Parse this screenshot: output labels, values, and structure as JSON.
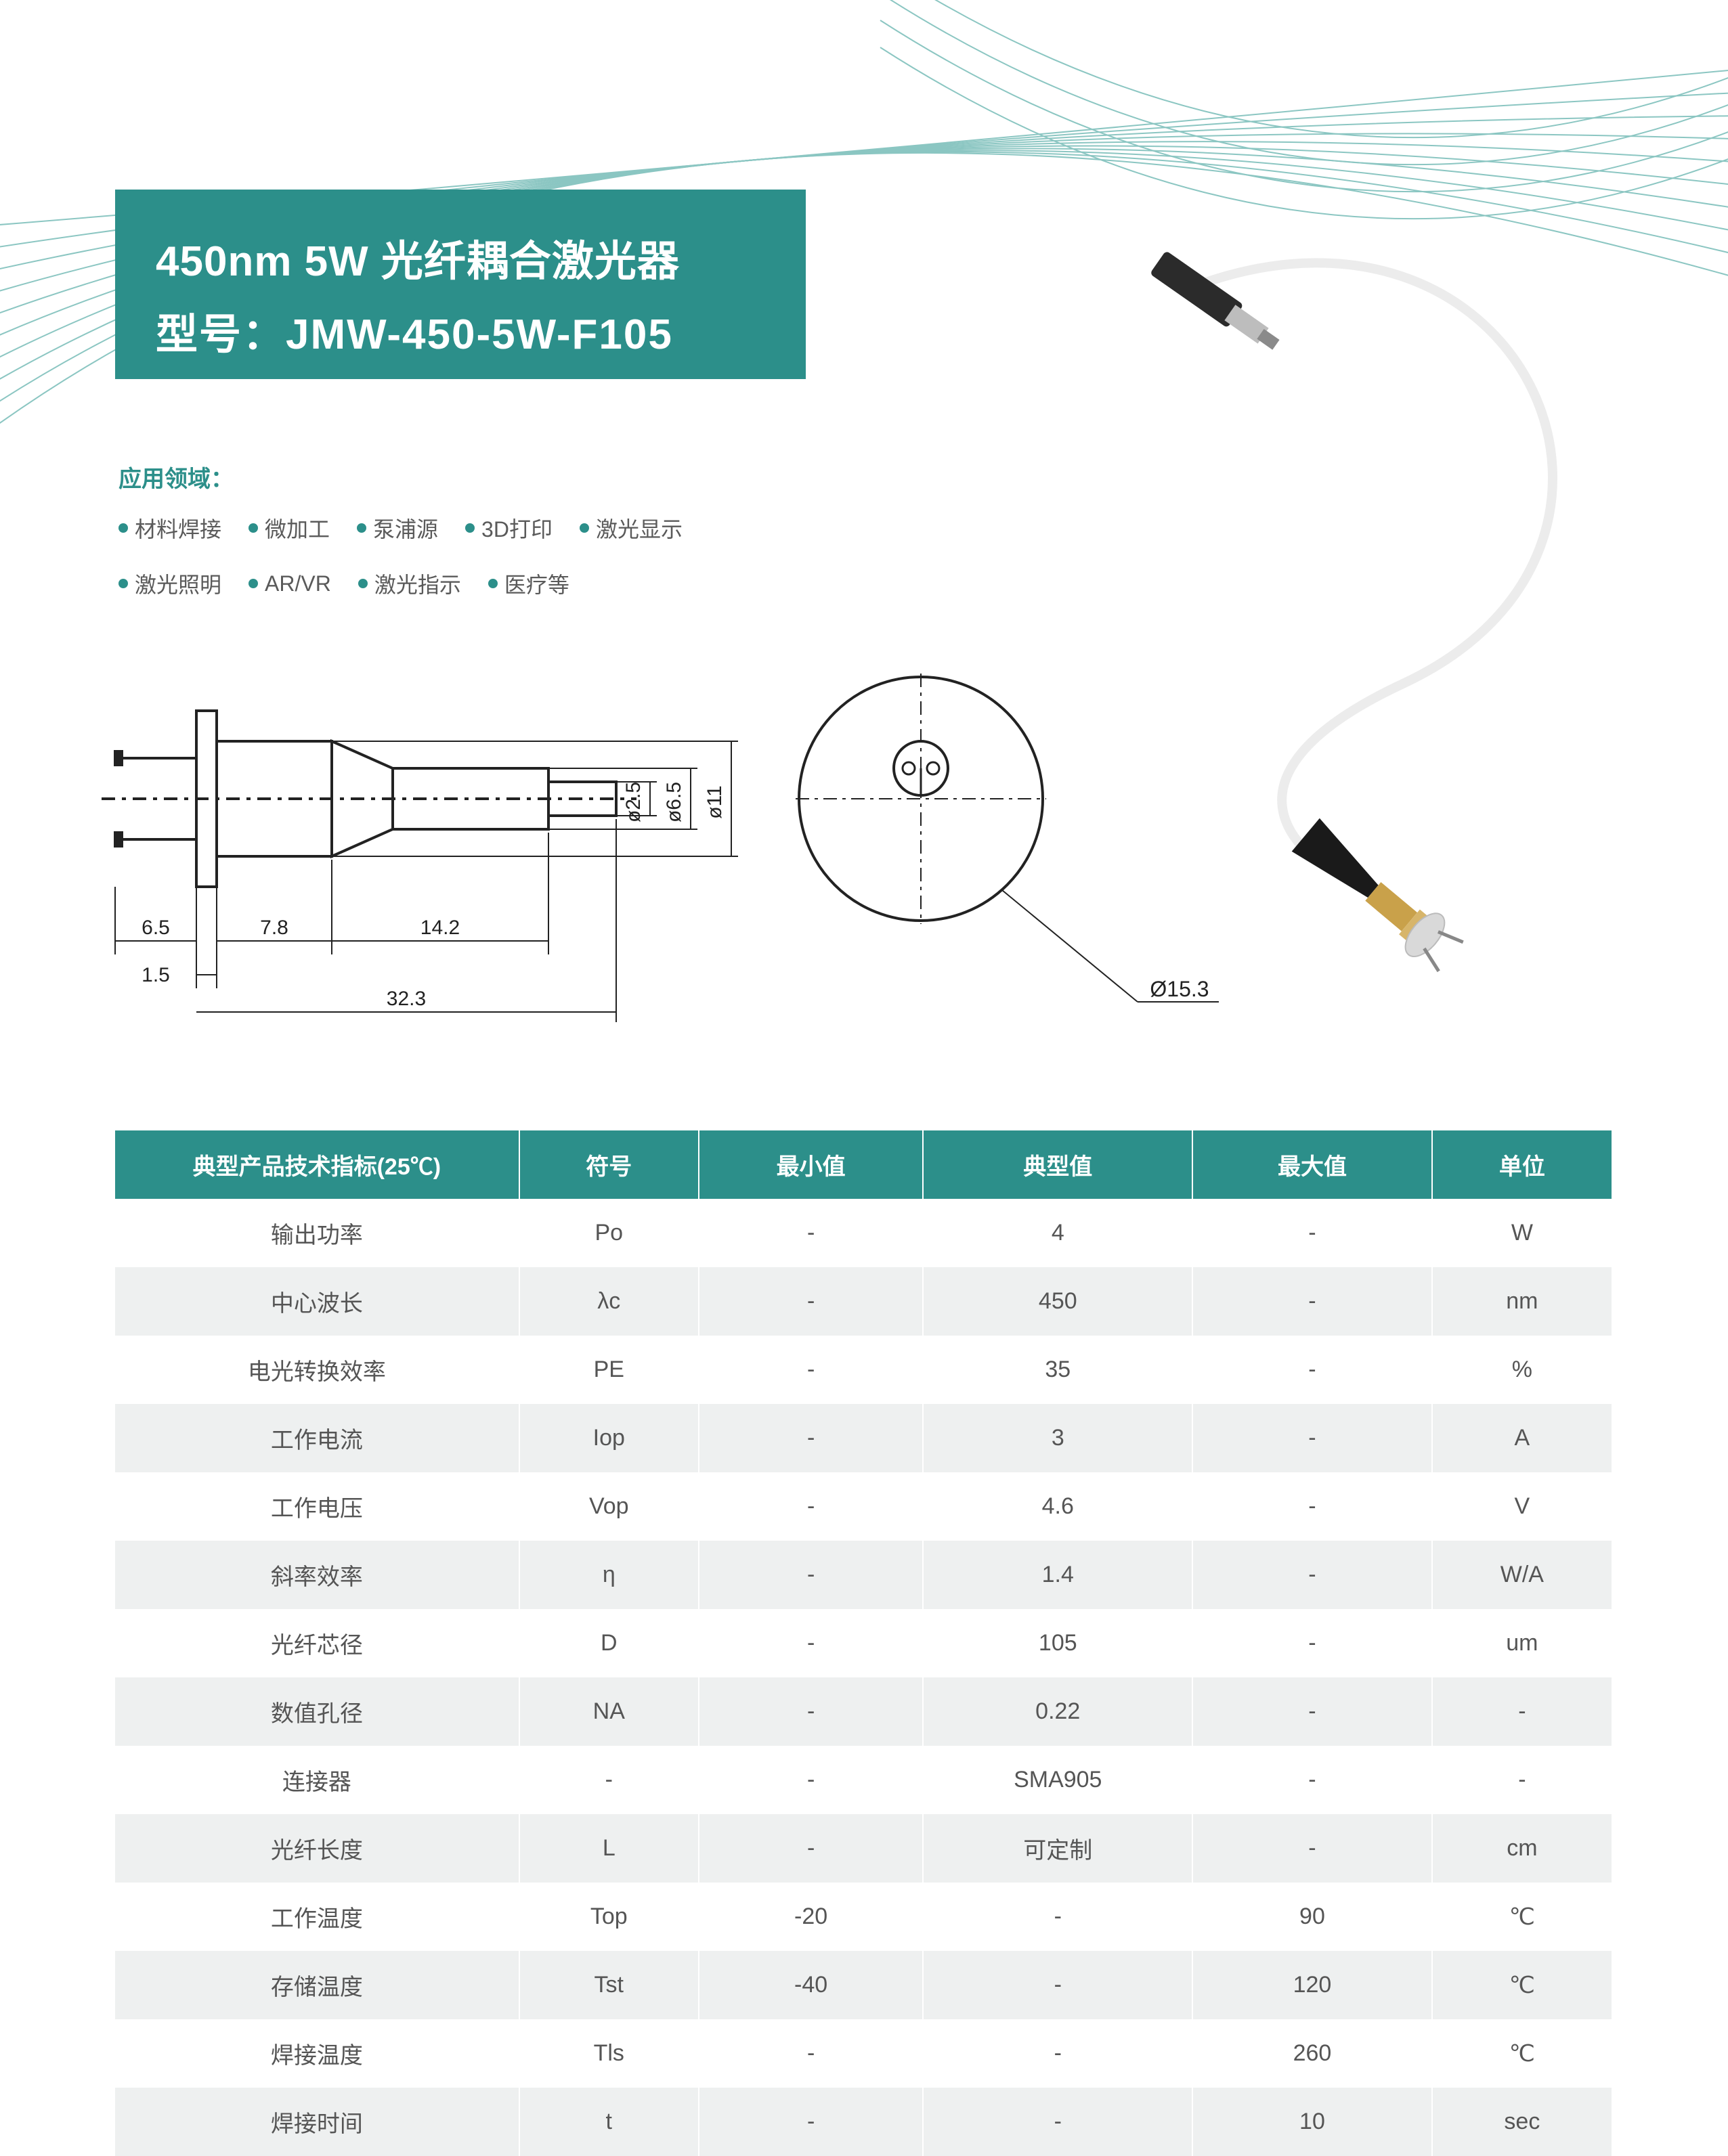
{
  "colors": {
    "teal": "#2c8f8a",
    "line": "#6fb8b3",
    "row_odd": "#ffffff",
    "row_even": "#eef0f0",
    "text_gray": "#555555",
    "white": "#ffffff",
    "black": "#222222",
    "brass": "#c9a14a"
  },
  "title": {
    "line1": "450nm 5W 光纤耦合激光器",
    "line2": "型号：JMW-450-5W-F105",
    "fontsize": 62
  },
  "applications": {
    "header": "应用领域：",
    "items": [
      "材料焊接",
      "微加工",
      "泵浦源",
      "3D打印",
      "激光显示",
      "激光照明",
      "AR/VR",
      "激光指示",
      "医疗等"
    ],
    "header_fontsize": 34,
    "item_fontsize": 32
  },
  "diagram": {
    "side_dims": {
      "l1": "6.5",
      "l2": "7.8",
      "l3": "14.2",
      "l4": "1.5",
      "total": "32.3"
    },
    "diameters": {
      "d1": "ø2.5",
      "d2": "ø6.5",
      "d3": "ø11"
    },
    "end_view": {
      "outer": "Ø15.3"
    }
  },
  "table": {
    "header": [
      "典型产品技术指标(25℃)",
      "符号",
      "最小值",
      "典型值",
      "最大值",
      "单位"
    ],
    "header_fontsize": 36,
    "cell_fontsize": 34,
    "rows": [
      [
        "输出功率",
        "Po",
        "-",
        "4",
        "-",
        "W"
      ],
      [
        "中心波长",
        "λc",
        "-",
        "450",
        "-",
        "nm"
      ],
      [
        "电光转换效率",
        "PE",
        "-",
        "35",
        "-",
        "%"
      ],
      [
        "工作电流",
        "Iop",
        "-",
        "3",
        "-",
        "A"
      ],
      [
        "工作电压",
        "Vop",
        "-",
        "4.6",
        "-",
        "V"
      ],
      [
        "斜率效率",
        "η",
        "-",
        "1.4",
        "-",
        "W/A"
      ],
      [
        "光纤芯径",
        "D",
        "-",
        "105",
        "-",
        "um"
      ],
      [
        "数值孔径",
        "NA",
        "-",
        "0.22",
        "-",
        "-"
      ],
      [
        "连接器",
        "-",
        "-",
        "SMA905",
        "-",
        "-"
      ],
      [
        "光纤长度",
        "L",
        "-",
        "可定制",
        "-",
        "cm"
      ],
      [
        "工作温度",
        "Top",
        "-20",
        "-",
        "90",
        "℃"
      ],
      [
        "存储温度",
        "Tst",
        "-40",
        "-",
        "120",
        "℃"
      ],
      [
        "焊接温度",
        "Tls",
        "-",
        "-",
        "260",
        "℃"
      ],
      [
        "焊接时间",
        "t",
        "-",
        "-",
        "10",
        "sec"
      ]
    ]
  }
}
